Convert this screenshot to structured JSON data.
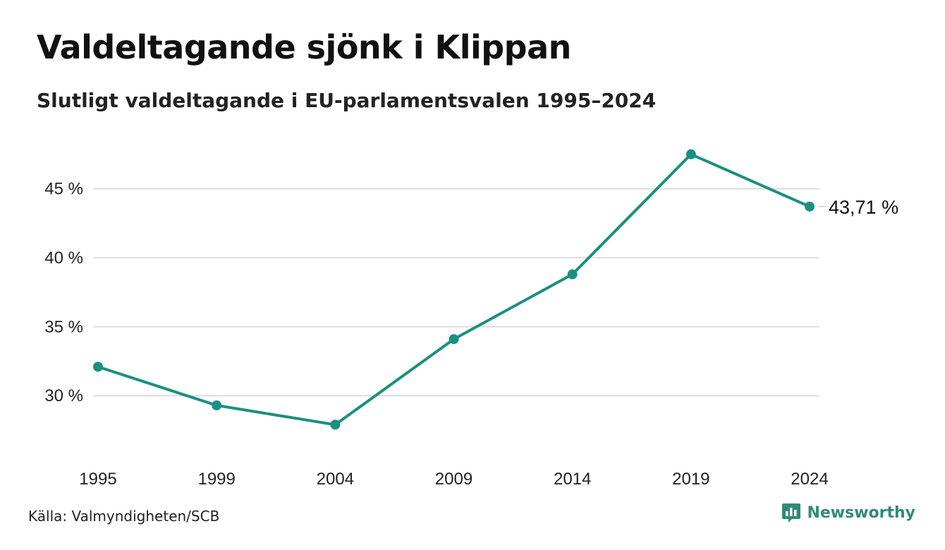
{
  "header": {
    "title": "Valdeltagande sjönk i Klippan",
    "subtitle": "Slutligt valdeltagande i EU-parlamentsvalen 1995–2024"
  },
  "footer": {
    "source": "Källa: Valmyndigheten/SCB",
    "brand": "Newsworthy",
    "brand_icon": "bar-chart-speech-bubble-icon"
  },
  "colors": {
    "line": "#1a9080",
    "grid": "#dddddd",
    "brand": "#2f8a7a"
  },
  "chart_data": {
    "type": "line",
    "categories": [
      "1995",
      "1999",
      "2004",
      "2009",
      "2014",
      "2019",
      "2024"
    ],
    "values": [
      32.1,
      29.3,
      27.9,
      34.1,
      38.8,
      47.5,
      43.71
    ],
    "yticks": [
      30,
      35,
      40,
      45
    ],
    "ytick_labels": [
      "30 %",
      "35 %",
      "40 %",
      "45 %"
    ],
    "ylim": [
      27.2,
      48.0
    ],
    "end_label": "43,71 %",
    "xlabel": "",
    "ylabel": "",
    "grid": true,
    "legend": false
  }
}
